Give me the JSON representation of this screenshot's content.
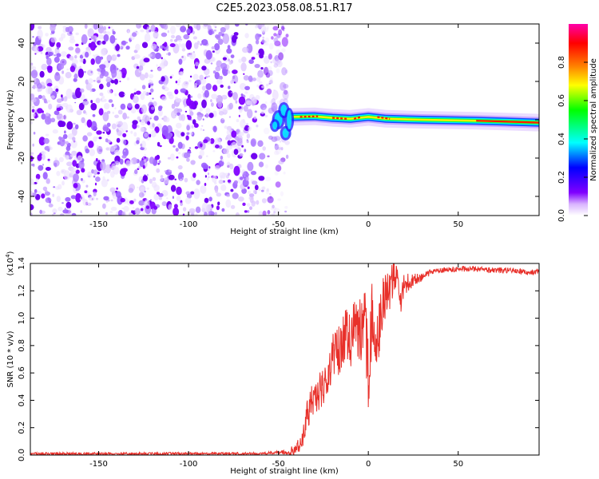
{
  "title": "C2E5.2023.058.08.51.R17",
  "chart_data": [
    {
      "type": "heatmap",
      "panel": "spectrogram",
      "xlabel": "Height of straight line (km)",
      "ylabel": "Frequency (Hz)",
      "xlim": [
        -188,
        95
      ],
      "ylim": [
        -50,
        50
      ],
      "xticks": [
        -150,
        -100,
        -50,
        0,
        50
      ],
      "yticks": [
        -40,
        -20,
        0,
        20,
        40
      ],
      "noise_region_x": [
        -188,
        -45
      ],
      "signal_onset_x": -45,
      "signal_band_center_hz": [
        {
          "x": -42,
          "y": 1.5
        },
        {
          "x": -30,
          "y": 1.8
        },
        {
          "x": -20,
          "y": 1.0
        },
        {
          "x": -10,
          "y": 0.5
        },
        {
          "x": 0,
          "y": 1.5
        },
        {
          "x": 10,
          "y": 0.5
        },
        {
          "x": 30,
          "y": 0.0
        },
        {
          "x": 60,
          "y": -0.5
        },
        {
          "x": 95,
          "y": -1.5
        }
      ],
      "colorbar": {
        "label": "Normalized spectral amplitude",
        "range": [
          0.0,
          1.0
        ],
        "ticks": [
          "0.0",
          "0.2",
          "0.4",
          "0.6",
          "0.8"
        ],
        "colors": [
          "#ffffff",
          "#d9b3ff",
          "#8000ff",
          "#0000ff",
          "#00ffff",
          "#00ff00",
          "#ffff00",
          "#ff8000",
          "#ff0000",
          "#ff00aa"
        ]
      }
    },
    {
      "type": "line",
      "panel": "snr",
      "xlabel": "Height of straight line (km)",
      "ylabel": "SNR (10 * v/v)",
      "multiplier": "(x10",
      "multiplier_exp": "4",
      "multiplier_close": ")",
      "xlim": [
        -188,
        95
      ],
      "ylim": [
        0.0,
        1.4
      ],
      "xticks": [
        -150,
        -100,
        -50,
        0,
        50
      ],
      "yticks": [
        "0.0",
        "0.2",
        "0.4",
        "0.6",
        "0.8",
        "1.0",
        "1.2",
        "1.4"
      ],
      "series": [
        {
          "color": "#e8302a",
          "x": [
            -188,
            -150,
            -100,
            -60,
            -50,
            -45,
            -40,
            -38,
            -36,
            -34,
            -32,
            -30,
            -28,
            -25,
            -22,
            -20,
            -18,
            -15,
            -12,
            -10,
            -8,
            -5,
            -2,
            0,
            2,
            5,
            8,
            10,
            12,
            15,
            18,
            20,
            25,
            30,
            35,
            40,
            50,
            60,
            70,
            80,
            90,
            95
          ],
          "values": [
            0.01,
            0.01,
            0.01,
            0.01,
            0.02,
            0.02,
            0.04,
            0.08,
            0.15,
            0.28,
            0.38,
            0.42,
            0.45,
            0.52,
            0.6,
            0.72,
            0.75,
            0.8,
            0.88,
            0.8,
            0.95,
            0.9,
            1.0,
            0.6,
            1.02,
            0.85,
            1.1,
            1.15,
            1.2,
            1.35,
            1.1,
            1.25,
            1.28,
            1.3,
            1.34,
            1.35,
            1.36,
            1.36,
            1.35,
            1.35,
            1.33,
            1.34
          ],
          "noise_amplitude": [
            0.01,
            0.01,
            0.01,
            0.01,
            0.01,
            0.02,
            0.05,
            0.08,
            0.1,
            0.12,
            0.12,
            0.12,
            0.14,
            0.15,
            0.16,
            0.18,
            0.18,
            0.2,
            0.2,
            0.22,
            0.22,
            0.24,
            0.25,
            0.3,
            0.25,
            0.22,
            0.2,
            0.18,
            0.15,
            0.12,
            0.1,
            0.08,
            0.05,
            0.03,
            0.02,
            0.02,
            0.02,
            0.02,
            0.02,
            0.02,
            0.02,
            0.02
          ]
        }
      ]
    }
  ]
}
